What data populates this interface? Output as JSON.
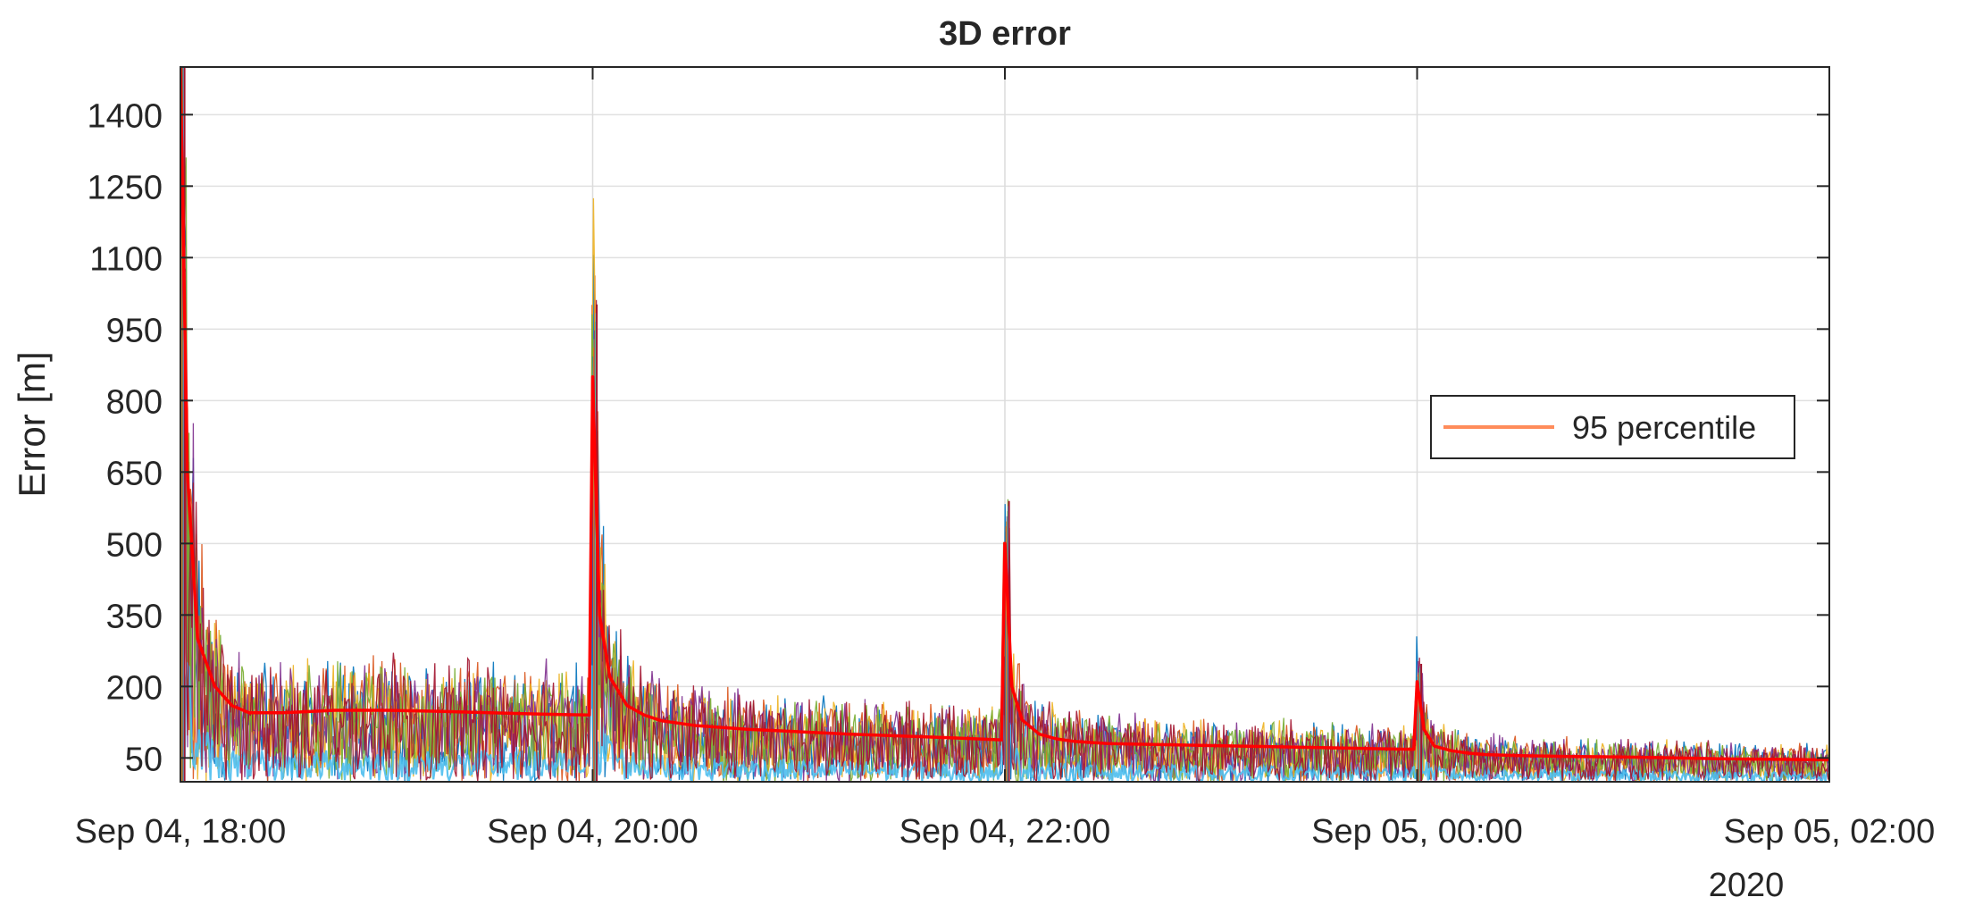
{
  "chart_data": {
    "type": "line",
    "title": "3D error",
    "ylabel": "Error [m]",
    "xlabel": "",
    "x_tick_labels": [
      "Sep 04, 18:00",
      "Sep 04, 20:00",
      "Sep 04, 22:00",
      "Sep 05, 00:00",
      "Sep 05, 02:00"
    ],
    "x_secondary_label": "2020",
    "xlim": [
      "2020-09-04T18:00",
      "2020-09-05T02:00"
    ],
    "ylim": [
      0,
      1500
    ],
    "y_ticks": [
      50,
      200,
      350,
      500,
      650,
      800,
      950,
      1100,
      1250,
      1400
    ],
    "grid": true,
    "legend": {
      "position": "right",
      "entries": [
        "95 percentile"
      ]
    },
    "colors": {
      "percentile": "#ff0000",
      "legend_line": "#ff8c5a",
      "runs": [
        "#0072bd",
        "#d95319",
        "#edb120",
        "#7e2f8e",
        "#77ac30",
        "#4dbeee",
        "#a2142f"
      ]
    },
    "reset_times": [
      "2020-09-04T18:00",
      "2020-09-04T20:00",
      "2020-09-04T22:00",
      "2020-09-05T00:00"
    ],
    "series": [
      {
        "name": "95 percentile",
        "x": [
          "2020-09-04T18:00",
          "2020-09-04T18:02",
          "2020-09-04T18:05",
          "2020-09-04T18:10",
          "2020-09-04T18:15",
          "2020-09-04T18:20",
          "2020-09-04T18:30",
          "2020-09-04T18:45",
          "2020-09-04T19:00",
          "2020-09-04T19:15",
          "2020-09-04T19:30",
          "2020-09-04T19:45",
          "2020-09-04T19:59",
          "2020-09-04T20:00",
          "2020-09-04T20:02",
          "2020-09-04T20:05",
          "2020-09-04T20:10",
          "2020-09-04T20:15",
          "2020-09-04T20:20",
          "2020-09-04T20:30",
          "2020-09-04T20:45",
          "2020-09-04T21:00",
          "2020-09-04T21:15",
          "2020-09-04T21:30",
          "2020-09-04T21:45",
          "2020-09-04T21:59",
          "2020-09-04T22:00",
          "2020-09-04T22:02",
          "2020-09-04T22:05",
          "2020-09-04T22:10",
          "2020-09-04T22:15",
          "2020-09-04T22:20",
          "2020-09-04T22:30",
          "2020-09-04T22:45",
          "2020-09-04T23:00",
          "2020-09-04T23:15",
          "2020-09-04T23:30",
          "2020-09-04T23:45",
          "2020-09-04T23:59",
          "2020-09-05T00:00",
          "2020-09-05T00:02",
          "2020-09-05T00:05",
          "2020-09-05T00:10",
          "2020-09-05T00:15",
          "2020-09-05T00:20",
          "2020-09-05T00:30",
          "2020-09-05T00:45",
          "2020-09-05T01:00",
          "2020-09-05T01:15",
          "2020-09-05T01:30",
          "2020-09-05T01:45",
          "2020-09-05T02:00"
        ],
        "y": [
          1500,
          650,
          300,
          200,
          160,
          145,
          145,
          150,
          150,
          148,
          145,
          142,
          140,
          850,
          350,
          220,
          160,
          140,
          128,
          118,
          110,
          105,
          100,
          96,
          92,
          88,
          500,
          200,
          130,
          100,
          90,
          85,
          80,
          78,
          76,
          74,
          72,
          70,
          68,
          210,
          110,
          75,
          65,
          60,
          57,
          55,
          53,
          52,
          50,
          48,
          47,
          46
        ]
      }
    ]
  }
}
